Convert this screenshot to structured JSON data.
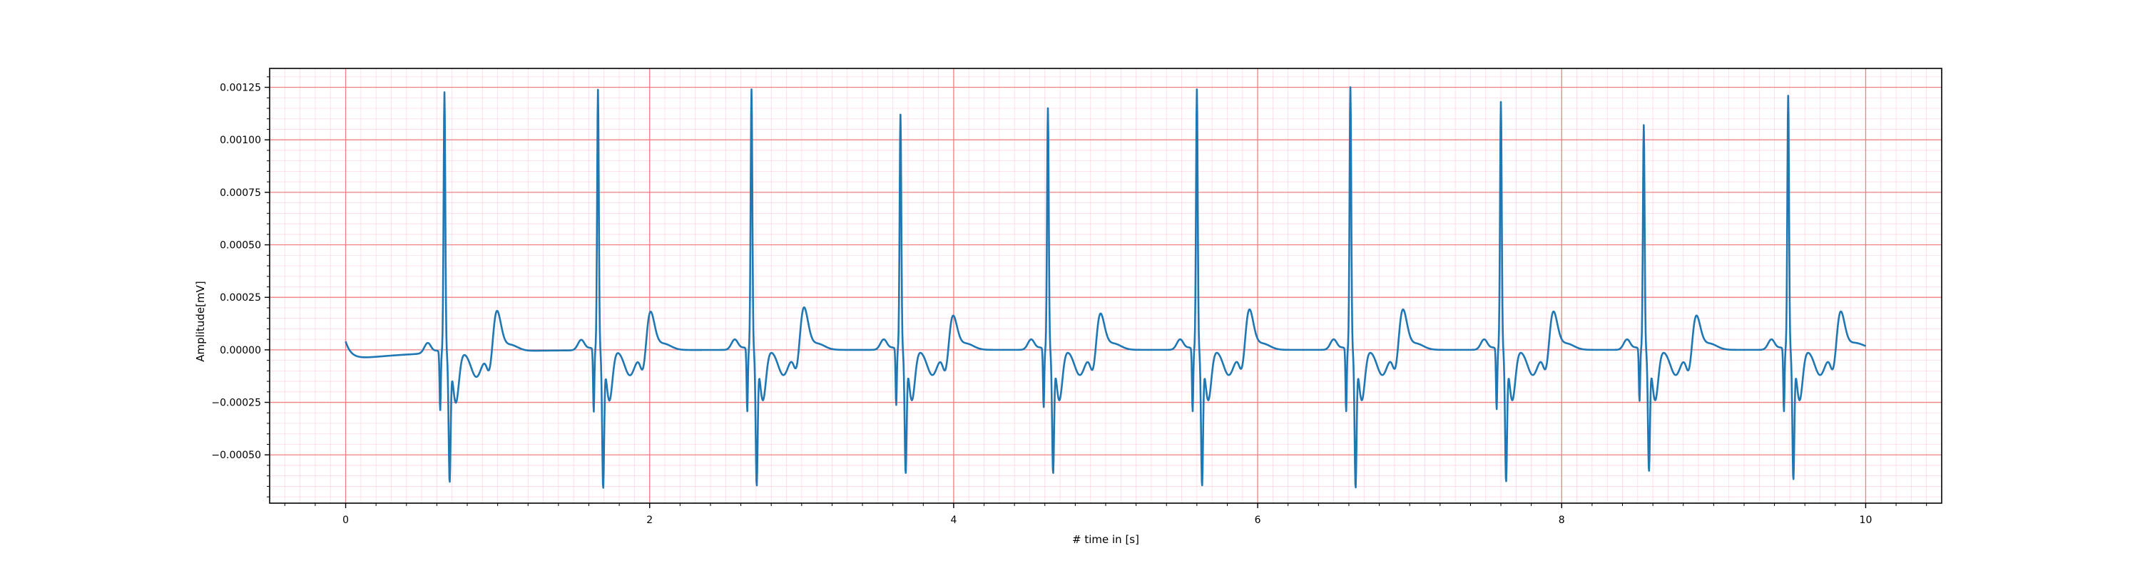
{
  "chart_data": {
    "type": "line",
    "title": "",
    "xlabel": "# time in [s]",
    "ylabel": "Amplitude[mV]",
    "xlim": [
      -0.5,
      10.5
    ],
    "ylim": [
      -0.00073,
      0.00134
    ],
    "x_ticks": [
      0,
      2,
      4,
      6,
      8,
      10
    ],
    "x_tick_labels": [
      "0",
      "2",
      "4",
      "6",
      "8",
      "10"
    ],
    "y_ticks": [
      0.00125,
      0.001,
      0.00075,
      0.0005,
      0.00025,
      0.0,
      -0.00025,
      -0.0005
    ],
    "y_tick_labels": [
      "0.00125",
      "0.00100",
      "0.00075",
      "0.00050",
      "0.00025",
      "0.00000",
      "−0.00025",
      "−0.00050"
    ],
    "grid": true,
    "grid_style": "ECG paper: major red grid, minor pink grid",
    "colors": {
      "line": "#1f77b4",
      "major_grid": "#f08080",
      "minor_grid": "#ffc0cb",
      "axes": "#000000"
    },
    "series": [
      {
        "start_value": 4e-05,
        "end_value": 1e-05,
        "beats": [
          {
            "r_time": 0.65,
            "r_peak": 0.00124,
            "s_trough": -0.00059,
            "q_dip": -0.00028,
            "t_peak": 0.00018
          },
          {
            "r_time": 1.66,
            "r_peak": 0.00124,
            "s_trough": -0.00063,
            "q_dip": -0.0003,
            "t_peak": 0.00017
          },
          {
            "r_time": 2.67,
            "r_peak": 0.00124,
            "s_trough": -0.00062,
            "q_dip": -0.0003,
            "t_peak": 0.00019
          },
          {
            "r_time": 3.65,
            "r_peak": 0.00112,
            "s_trough": -0.00056,
            "q_dip": -0.00027,
            "t_peak": 0.00015
          },
          {
            "r_time": 4.62,
            "r_peak": 0.00115,
            "s_trough": -0.00056,
            "q_dip": -0.00028,
            "t_peak": 0.00016
          },
          {
            "r_time": 5.6,
            "r_peak": 0.00124,
            "s_trough": -0.00062,
            "q_dip": -0.0003,
            "t_peak": 0.00018
          },
          {
            "r_time": 6.61,
            "r_peak": 0.00125,
            "s_trough": -0.00063,
            "q_dip": -0.0003,
            "t_peak": 0.00018
          },
          {
            "r_time": 7.6,
            "r_peak": 0.00118,
            "s_trough": -0.0006,
            "q_dip": -0.00029,
            "t_peak": 0.00017
          },
          {
            "r_time": 8.54,
            "r_peak": 0.00107,
            "s_trough": -0.00055,
            "q_dip": -0.00025,
            "t_peak": 0.00015
          },
          {
            "r_time": 9.49,
            "r_peak": 0.00121,
            "s_trough": -0.00059,
            "q_dip": -0.0003,
            "t_peak": 0.00017
          }
        ]
      }
    ]
  }
}
